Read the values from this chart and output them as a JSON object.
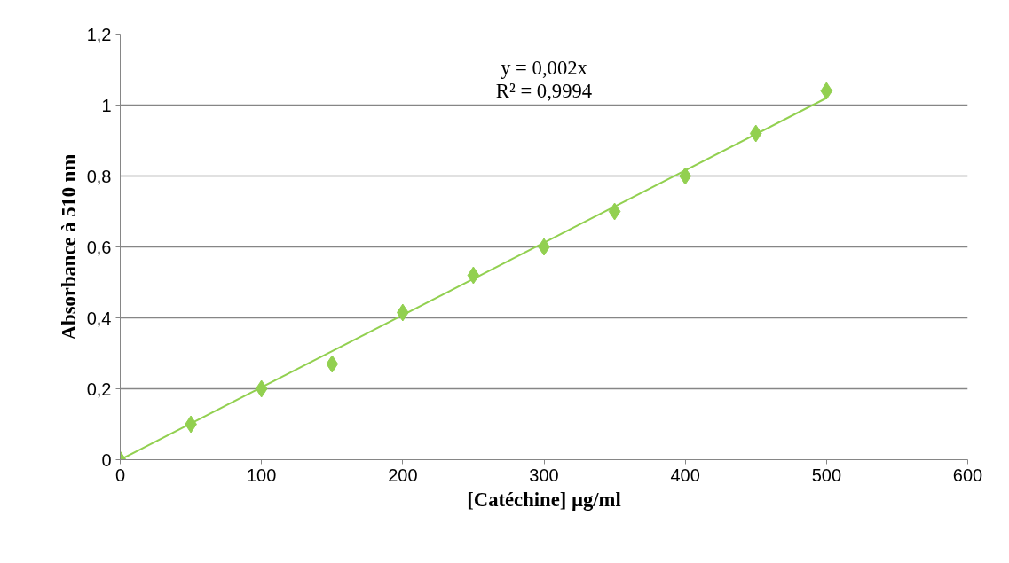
{
  "chart_data": {
    "type": "scatter",
    "xlabel": "[Catéchine] µg/ml",
    "ylabel": "Absorbance à 510 nm",
    "annotations": [
      "y = 0,002x",
      "R² = 0,9994"
    ],
    "series": [
      {
        "color": "#92d050",
        "marker": "diamond",
        "x": [
          0,
          50,
          100,
          150,
          200,
          250,
          300,
          350,
          400,
          450,
          500
        ],
        "values": [
          0,
          0.1,
          0.2,
          0.27,
          0.415,
          0.52,
          0.6,
          0.7,
          0.8,
          0.92,
          1.04
        ]
      },
      {
        "type": "line",
        "color": "#92d050",
        "line_style": "solid",
        "x": [
          0,
          500
        ],
        "values": [
          0,
          1.02
        ]
      }
    ],
    "xlim": [
      0,
      600
    ],
    "xticks": [
      0,
      100,
      200,
      300,
      400,
      500,
      600
    ],
    "ylim": [
      0,
      1.2
    ],
    "yticks": [
      0,
      {
        "value": 0.2,
        "label": "0,2"
      },
      {
        "value": 0.4,
        "label": "0,4"
      },
      {
        "value": 0.6,
        "label": "0,6"
      },
      {
        "value": 0.8,
        "label": "0,8"
      },
      1,
      {
        "value": 1.2,
        "label": "1,2"
      }
    ],
    "grid": "y"
  }
}
